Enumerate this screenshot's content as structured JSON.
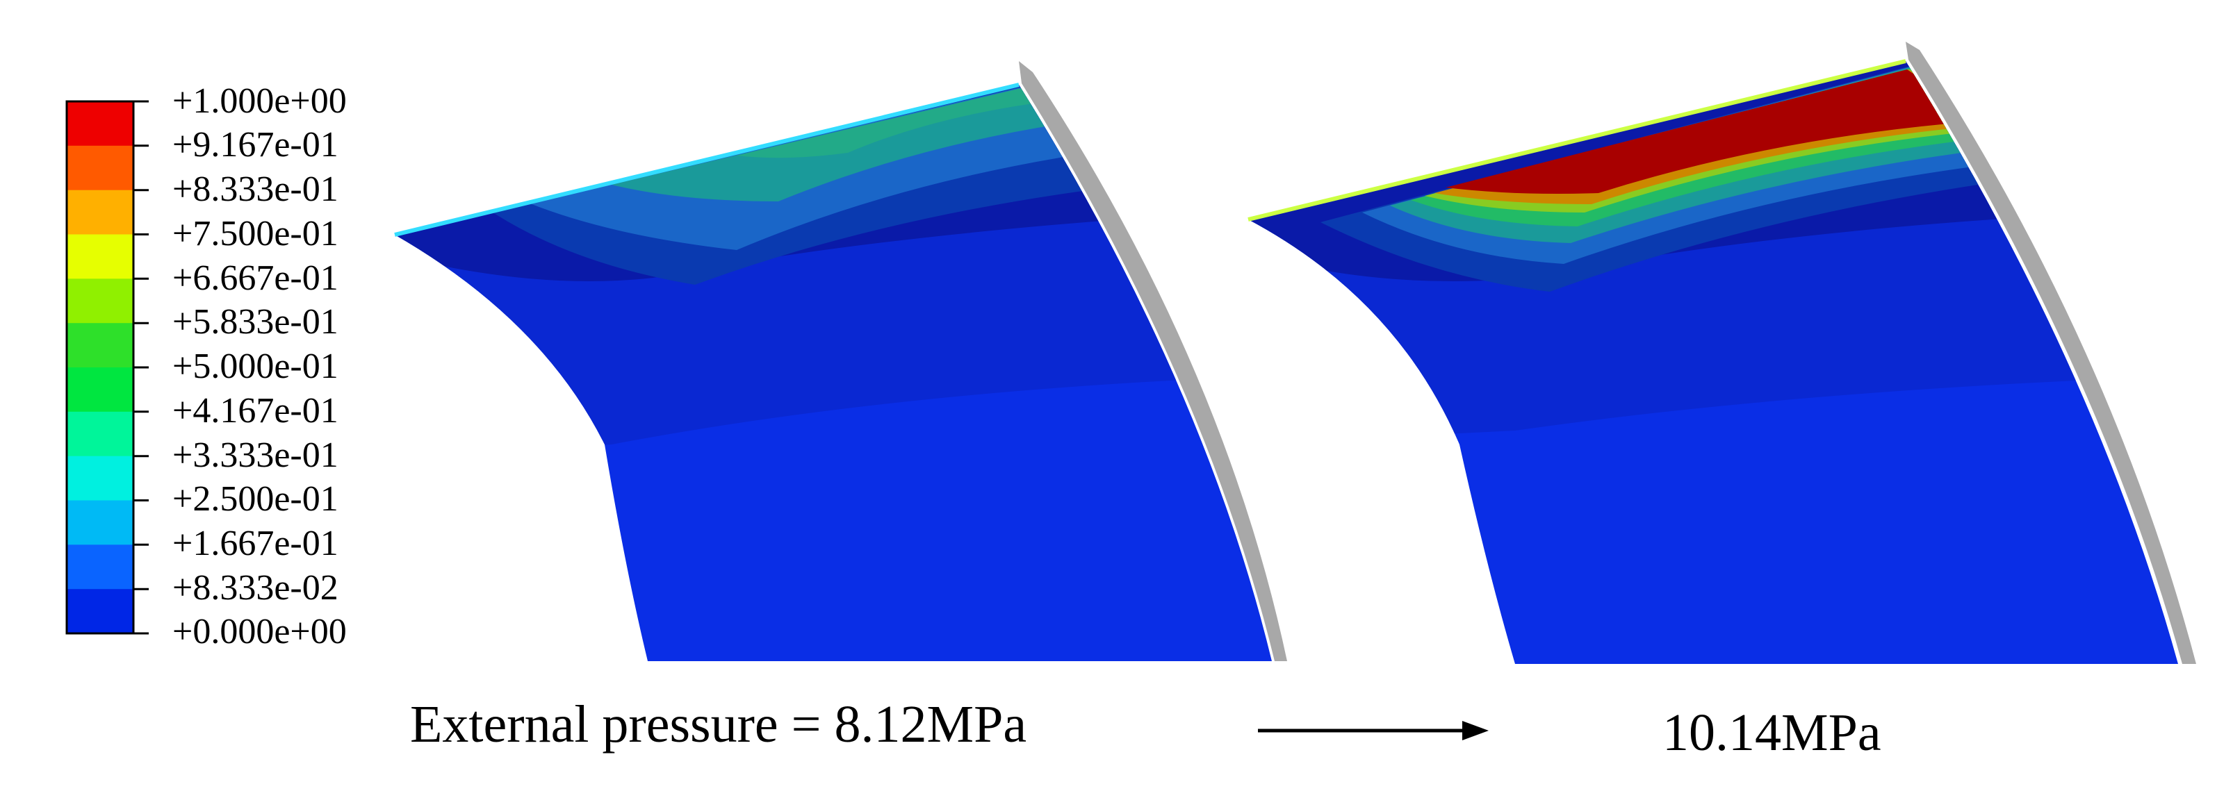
{
  "legend": {
    "labels": [
      "+1.000e+00",
      "+9.167e-01",
      "+8.333e-01",
      "+7.500e-01",
      "+6.667e-01",
      "+5.833e-01",
      "+5.000e-01",
      "+4.167e-01",
      "+3.333e-01",
      "+2.500e-01",
      "+1.667e-01",
      "+8.333e-02",
      "+0.000e+00"
    ],
    "colors_top_to_bottom": [
      "#ee0000",
      "#ff5a00",
      "#ffb000",
      "#e6ff00",
      "#90f000",
      "#2ee02a",
      "#00e640",
      "#00f59a",
      "#00f0e0",
      "#00baf5",
      "#0a64ff",
      "#0026e6"
    ]
  },
  "captions": {
    "left": "External pressure = 8.12MPa",
    "right": "10.14MPa"
  },
  "colors": {
    "base_blue": "#0a2ee6",
    "deep_blue": "#0a1aa8",
    "shell_gray": "#a8a8a8",
    "peak_red": "#a80000"
  }
}
